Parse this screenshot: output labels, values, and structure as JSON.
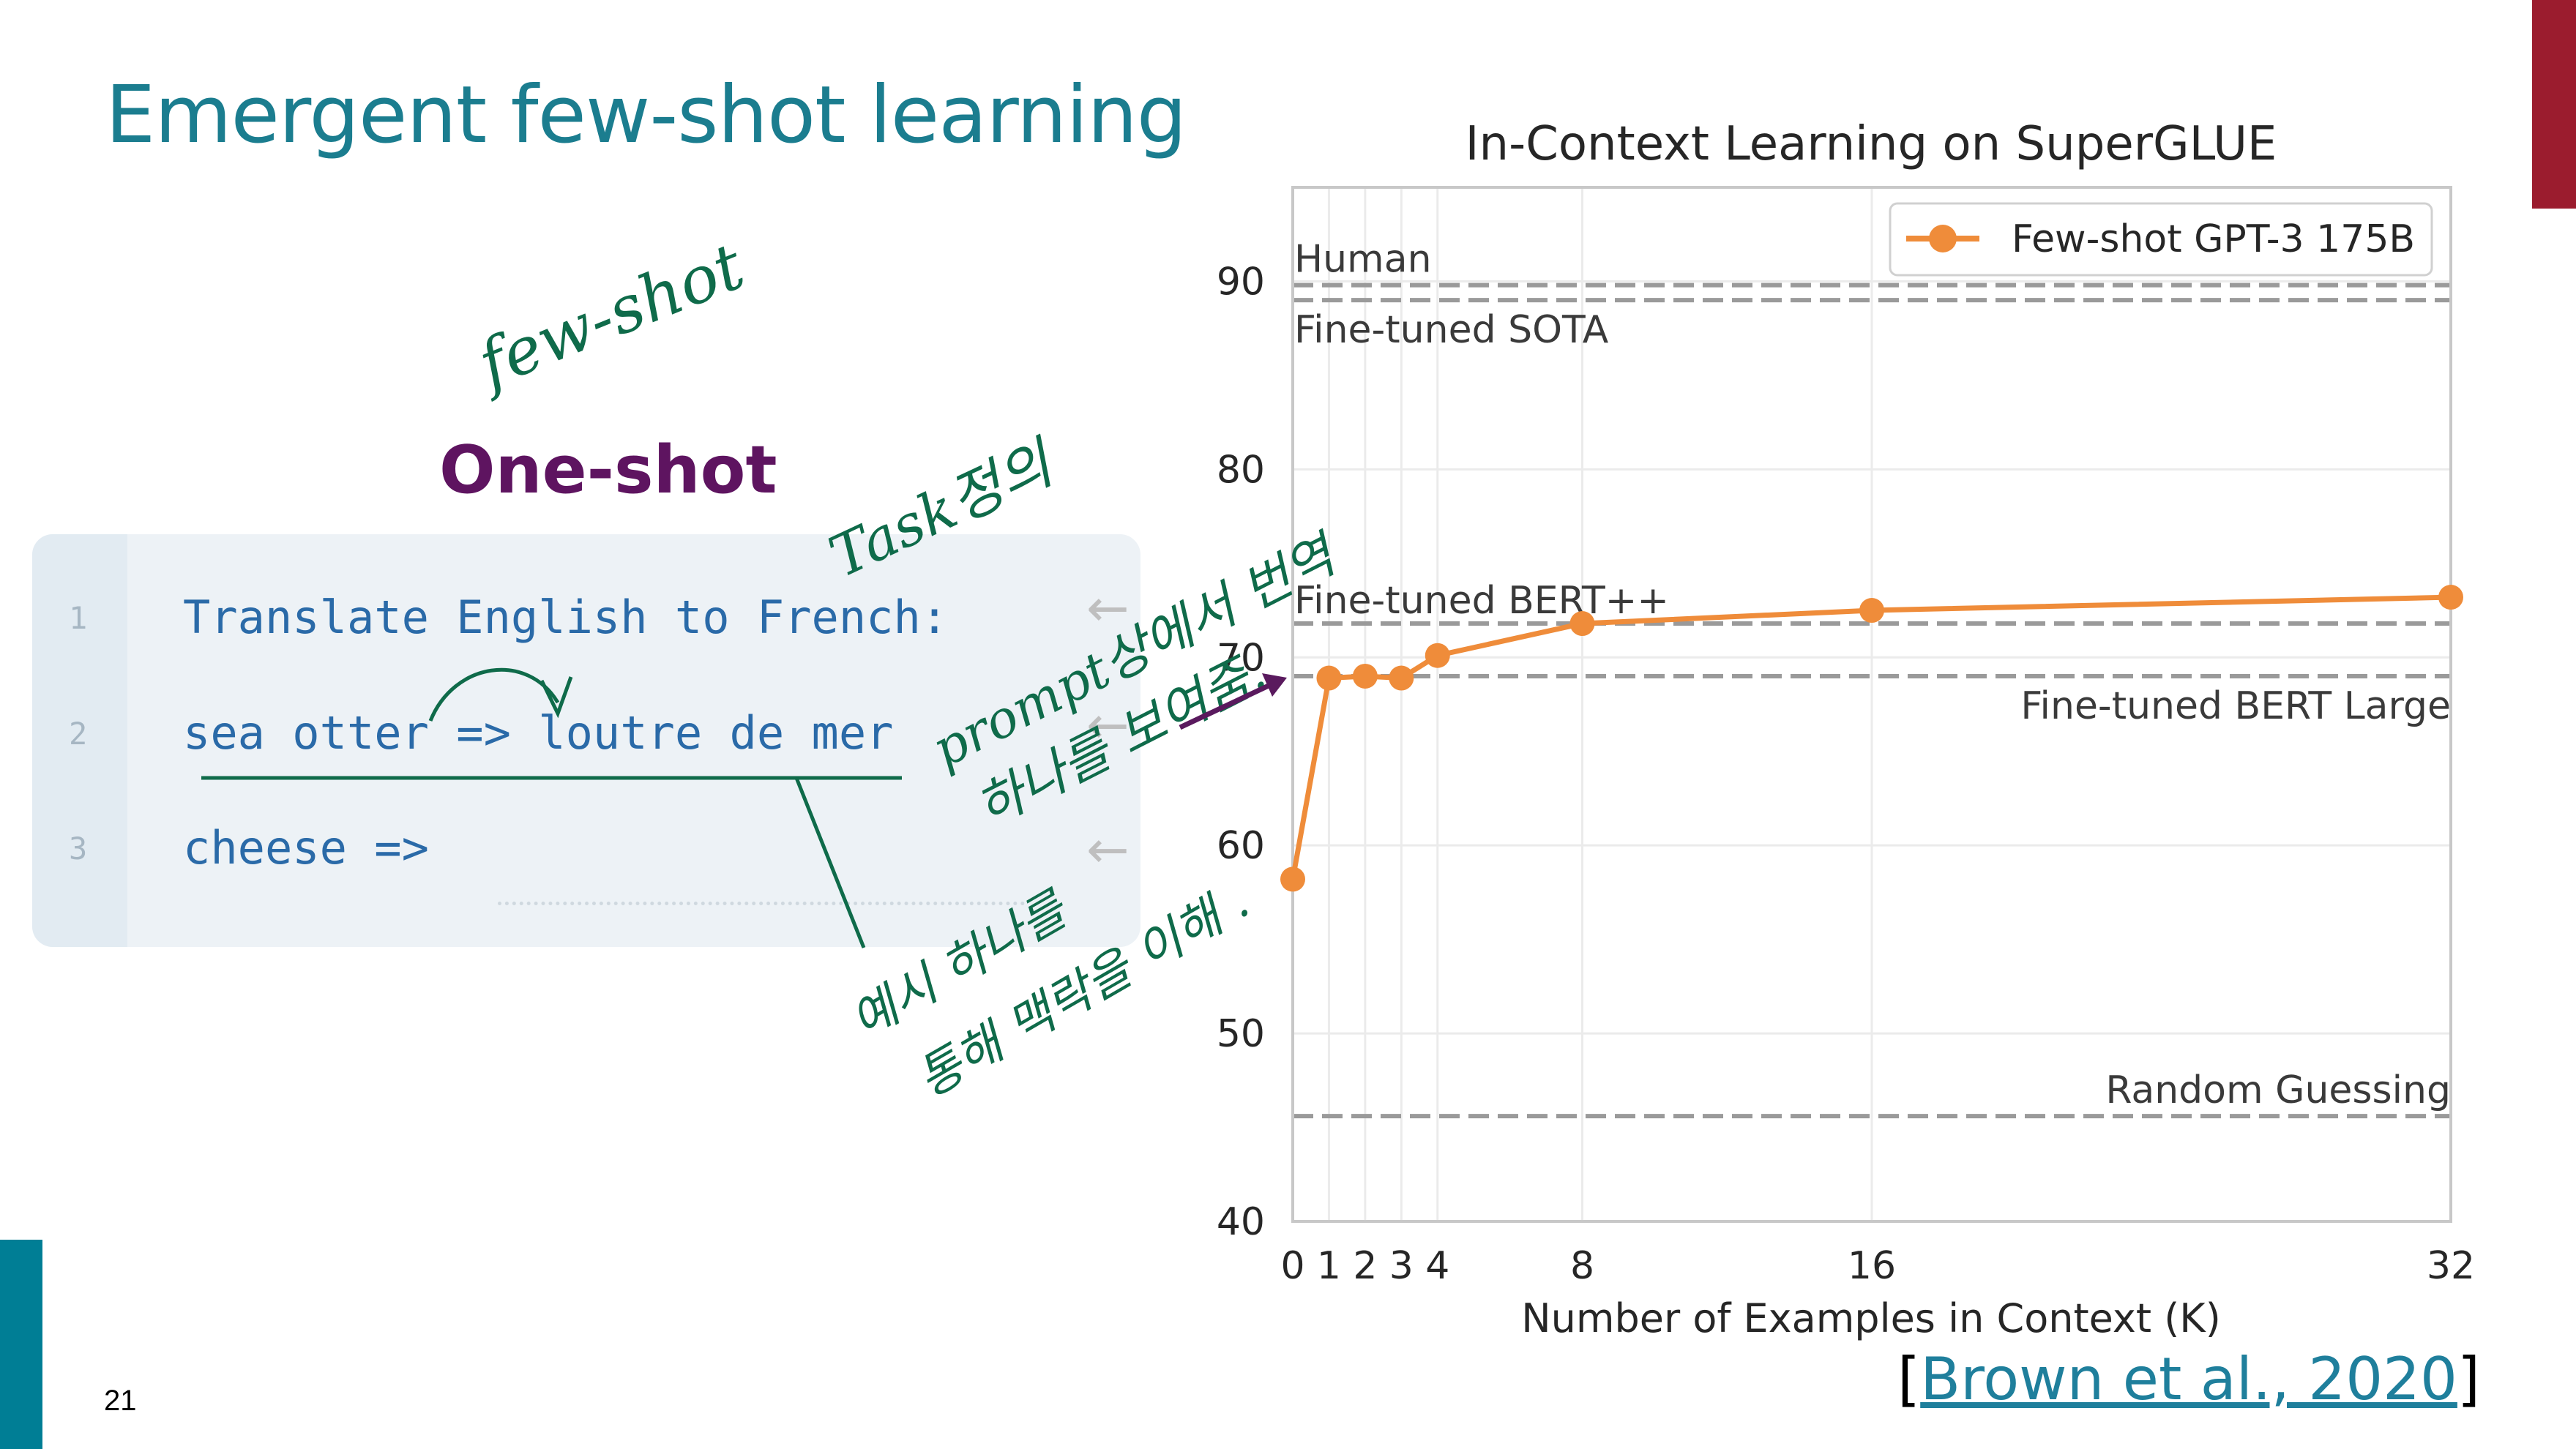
{
  "slide": {
    "title": "Emergent few-shot learning",
    "page_number": "21",
    "citation_open": "[",
    "citation_text": "Brown et al., 2020",
    "citation_close": "]"
  },
  "prompt_panel": {
    "heading": "One-shot",
    "lines": [
      {
        "num": "1",
        "text": "Translate English to French:"
      },
      {
        "num": "2",
        "text": "sea otter => loutre de mer"
      },
      {
        "num": "3",
        "text": "cheese =>"
      }
    ],
    "arrow_glyph": "←"
  },
  "handwriting": {
    "few_shot": "few-shot",
    "task": "Task정의",
    "prompt_note_1": "prompt상에서 번역",
    "prompt_note_2": "하나를 보여줌.",
    "example_note_1": "예시 하나를",
    "example_note_2": "통해  맥락을 이해 ."
  },
  "colors": {
    "title": "#1b7d8f",
    "heading": "#5e1460",
    "series": "#ef8c3a",
    "ink_green": "#0f6b4a",
    "ink_purple": "#5a1a5e"
  },
  "chart_data": {
    "type": "line",
    "title": "In-Context Learning on SuperGLUE",
    "xlabel": "Number of Examples in Context (K)",
    "ylabel": "",
    "xlim": [
      0,
      32
    ],
    "ylim": [
      40,
      95
    ],
    "x_ticks": [
      0,
      1,
      2,
      3,
      4,
      8,
      16,
      32
    ],
    "y_ticks": [
      40,
      50,
      60,
      70,
      80,
      90
    ],
    "grid": true,
    "legend_position": "top-right",
    "series": [
      {
        "name": "Few-shot GPT-3 175B",
        "x": [
          0,
          1,
          2,
          3,
          4,
          8,
          16,
          32
        ],
        "y": [
          58.2,
          68.9,
          69.0,
          68.9,
          70.1,
          71.8,
          72.5,
          73.2
        ]
      }
    ],
    "reference_lines": [
      {
        "label": "Human",
        "value": 89.8
      },
      {
        "label": "Fine-tuned SOTA",
        "value": 89.0
      },
      {
        "label": "Fine-tuned BERT++",
        "value": 71.8
      },
      {
        "label": "Fine-tuned BERT Large",
        "value": 69.0
      },
      {
        "label": "Random Guessing",
        "value": 45.6
      }
    ]
  }
}
